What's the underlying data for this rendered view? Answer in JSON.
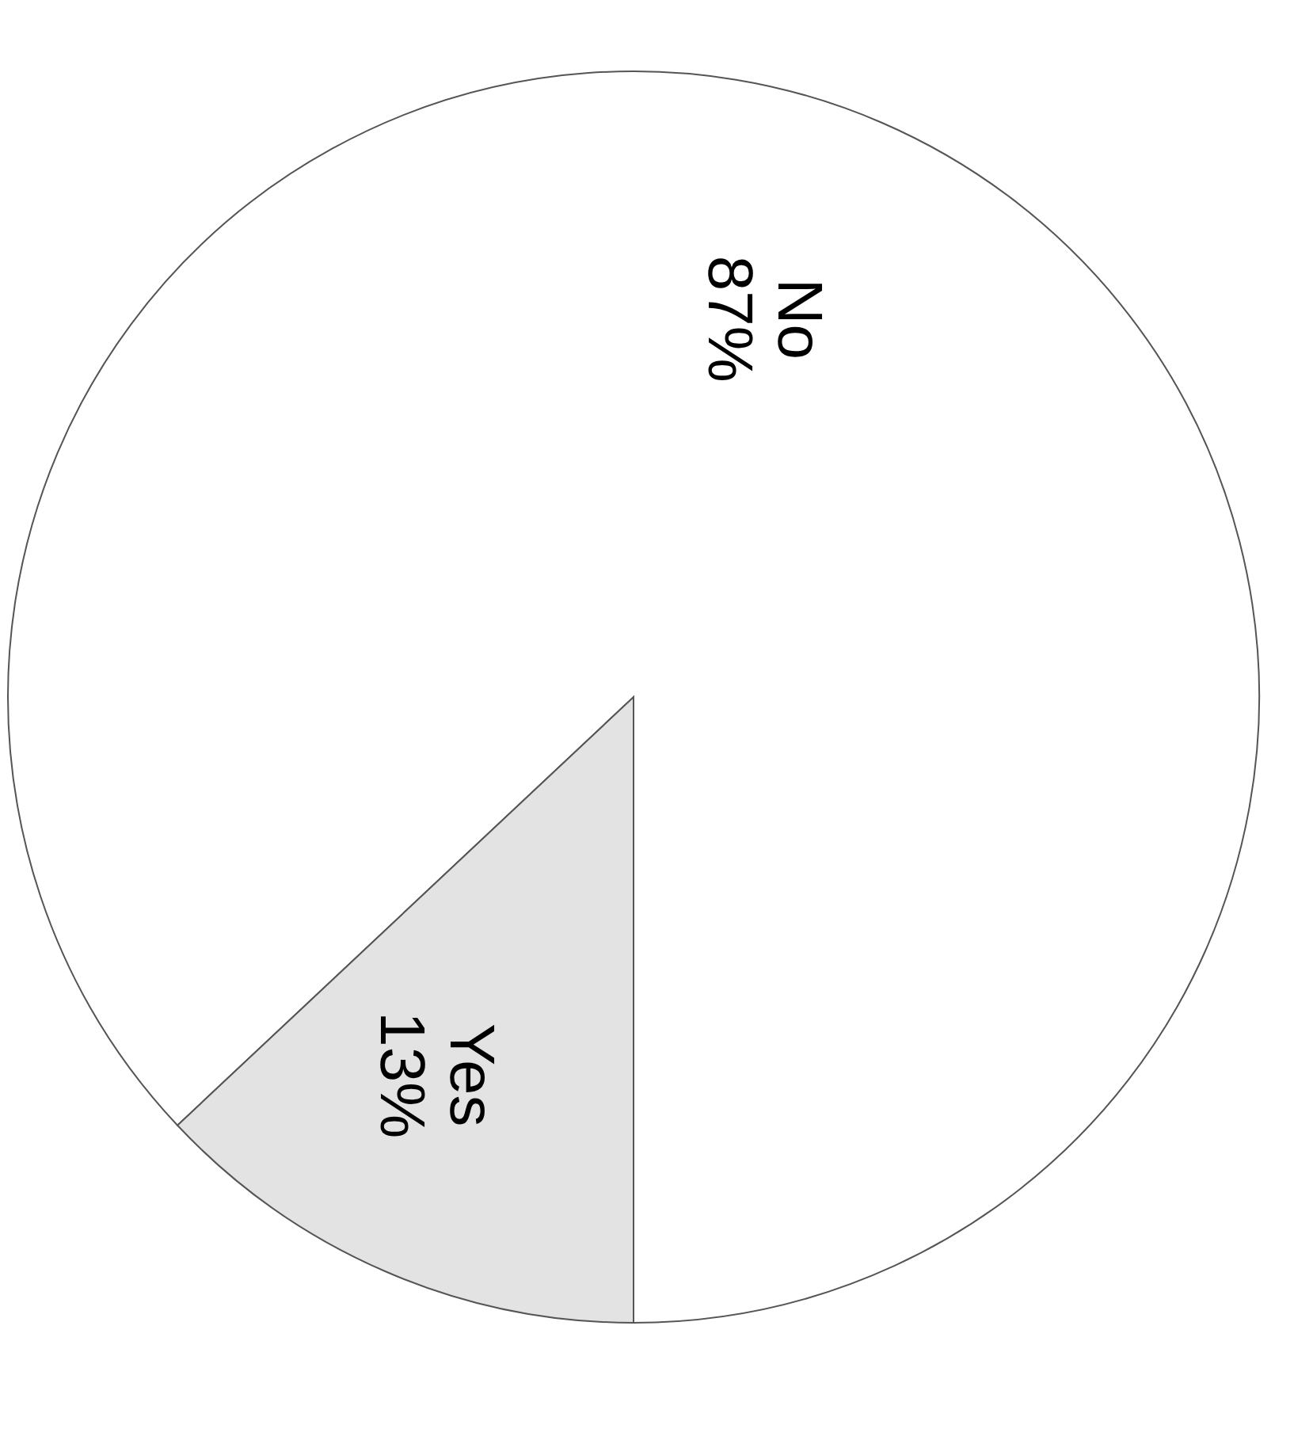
{
  "chart_data": {
    "type": "pie",
    "categories": [
      "No",
      "Yes"
    ],
    "values": [
      87,
      13
    ],
    "value_labels": [
      "87%",
      "13%"
    ],
    "colors": [
      "#ffffff",
      "#e3e3e3"
    ]
  }
}
